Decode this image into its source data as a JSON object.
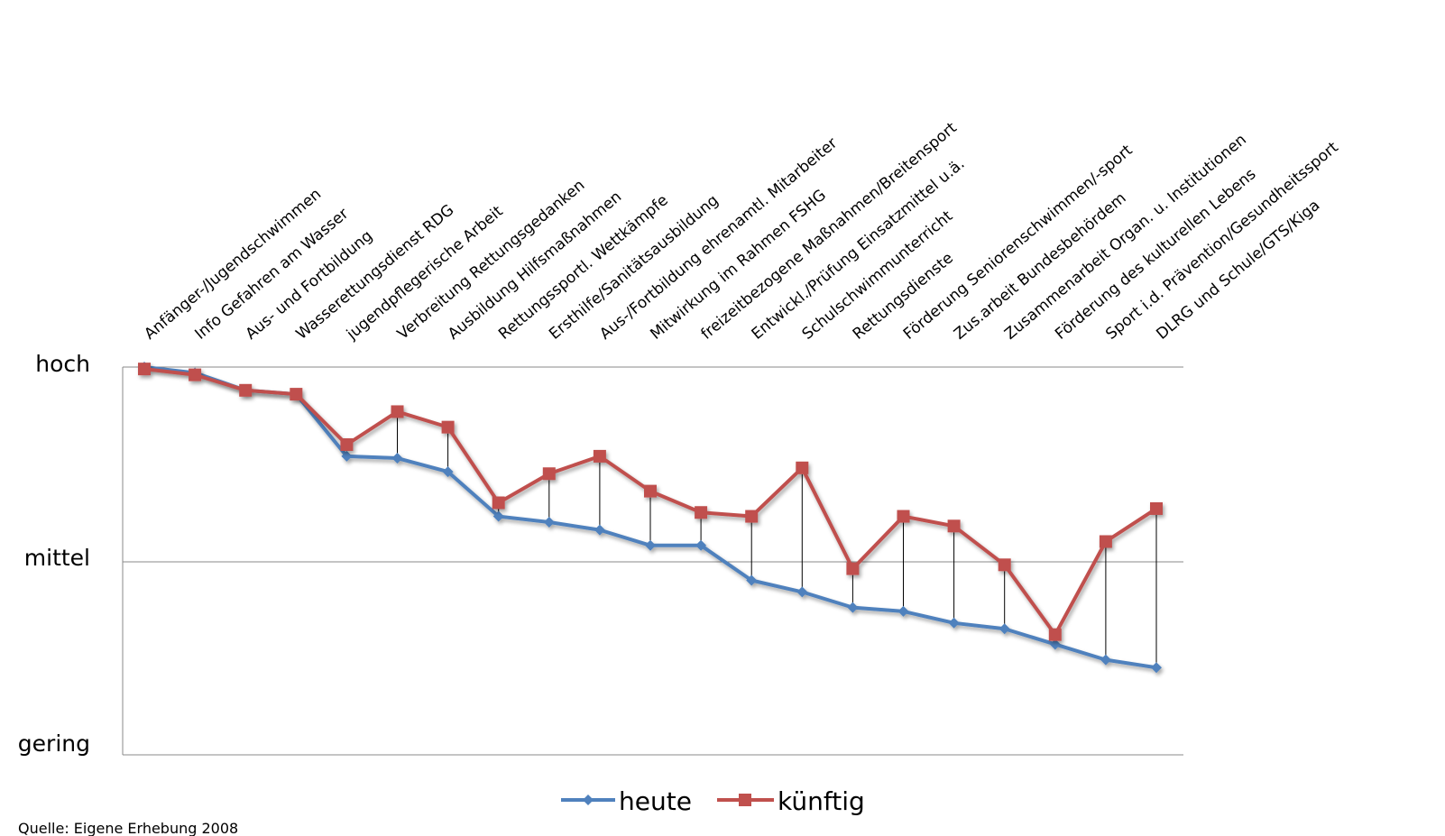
{
  "chart_data": {
    "type": "line",
    "categories": [
      "Anfänger-/Jugendschwimmen",
      "Info Gefahren am Wasser",
      "Aus- und Fortbildung",
      "Wasserettungsdienst RDG",
      "jugendpflegerische Arbeit",
      "Verbreitung Rettungsgedanken",
      "Ausbildung Hilfsmaßnahmen",
      "Rettungssportl. Wettkämpfe",
      "Ersthilfe/Sanitätsausbildung",
      "Aus-/Fortbildung ehrenamtl. Mitarbeiter",
      "Mitwirkung im Rahmen FSHG",
      "freizeitbezogene Maßnahmen/Breitensport",
      "Entwickl./Prüfung Einsatzmittel u.ä.",
      "Schulschwimmunterricht",
      "Rettungsdienste",
      "Förderung Seniorenschwimmen/-sport",
      "Zus.arbeit Bundesbehördem",
      "Zusammenarbeit Organ. u. Institutionen",
      "Förderung des kulturellen Lebens",
      "Sport i.d. Prävention/Gesundheitssport",
      "DLRG und Schule/GTS/Kiga"
    ],
    "series": [
      {
        "name": "heute",
        "color": "#4F81BD",
        "marker": "diamond",
        "values": [
          2.0,
          1.97,
          1.88,
          1.86,
          1.54,
          1.53,
          1.46,
          1.23,
          1.2,
          1.16,
          1.08,
          1.08,
          0.9,
          0.84,
          0.76,
          0.74,
          0.68,
          0.65,
          0.57,
          0.49,
          0.45
        ]
      },
      {
        "name": "künftig",
        "color": "#C0504D",
        "marker": "square",
        "values": [
          1.99,
          1.96,
          1.88,
          1.86,
          1.6,
          1.77,
          1.69,
          1.3,
          1.45,
          1.54,
          1.36,
          1.25,
          1.23,
          1.48,
          0.96,
          1.23,
          1.18,
          0.98,
          0.62,
          1.1,
          1.27
        ]
      }
    ],
    "y_tick_labels": [
      "gering",
      "mittel",
      "hoch"
    ],
    "ylim": [
      0,
      2
    ],
    "grid": true,
    "drop_lines": true,
    "legend_position": "bottom",
    "source": "Quelle: Eigene Erhebung 2008"
  }
}
